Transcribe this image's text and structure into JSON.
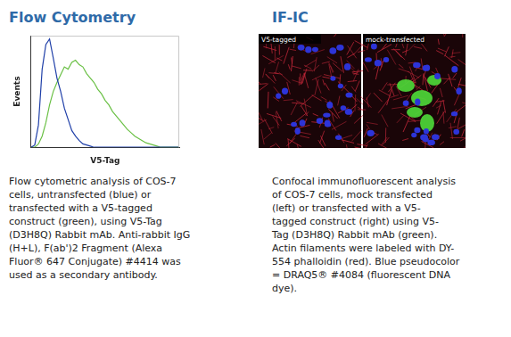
{
  "flow_cytometry": {
    "heading": "Flow Cytometry",
    "caption": [
      "Flow cytometric analysis of COS-7",
      "cells, untransfected (blue) or",
      "transfected with a V5-tagged",
      "construct (green), using V5-Tag",
      "(D3H8Q) Rabbit mAb. Anti-rabbit IgG",
      "(H+L), F(ab')2 Fragment (Alexa",
      "Fluor® 647 Conjugate) #4414 was",
      "used as a secondary antibody."
    ]
  },
  "chart_data": {
    "type": "line",
    "x_label": "V5-Tag",
    "y_label": "Events",
    "x": [
      0,
      2.5,
      5,
      7.5,
      10,
      12.5,
      15,
      17.5,
      20,
      22.5,
      25,
      27.5,
      30,
      32.5,
      35,
      37.5,
      40,
      42.5,
      45,
      47.5,
      50,
      52.5,
      55,
      57.5,
      60,
      62.5,
      65,
      67.5,
      70,
      72.5,
      75,
      77.5,
      80,
      82.5,
      85,
      87.5,
      90,
      92.5,
      95,
      97.5,
      100
    ],
    "series": [
      {
        "name": "untransfected",
        "color": "#1f3fa8",
        "values": [
          0,
          2,
          20,
          70,
          92,
          97,
          80,
          62,
          50,
          35,
          25,
          15,
          10,
          6,
          3,
          2,
          1,
          0,
          0,
          0,
          0,
          0,
          0,
          0,
          0,
          0,
          0,
          0,
          0,
          0,
          0,
          0,
          0,
          0,
          0,
          0,
          0,
          0,
          0,
          0,
          0
        ]
      },
      {
        "name": "transfected",
        "color": "#6ac045",
        "values": [
          0,
          0,
          3,
          10,
          22,
          38,
          50,
          58,
          65,
          72,
          70,
          76,
          78,
          74,
          72,
          66,
          62,
          58,
          52,
          48,
          42,
          38,
          32,
          28,
          24,
          20,
          16,
          13,
          10,
          8,
          6,
          4,
          3,
          2,
          1,
          0,
          0,
          0,
          0,
          0,
          0
        ]
      }
    ],
    "xlim": [
      0,
      100
    ],
    "ylim": [
      0,
      100
    ],
    "tick_labels": false,
    "grid": false
  },
  "if_ic": {
    "heading": "IF-IC",
    "image_labels": [
      "V5-tagged",
      "mock-transfected"
    ],
    "caption": [
      "Confocal immunofluorescent analysis",
      "of COS-7 cells, mock transfected",
      "(left) or transfected with a V5-",
      "tagged construct (right) using V5-",
      "Tag (D3H8Q) Rabbit mAb (green).",
      "Actin filaments were labeled with DY-",
      "554 phalloidin (red). Blue pseudocolor",
      "= DRAQ5® #4084 (fluorescent DNA",
      "dye)."
    ]
  }
}
